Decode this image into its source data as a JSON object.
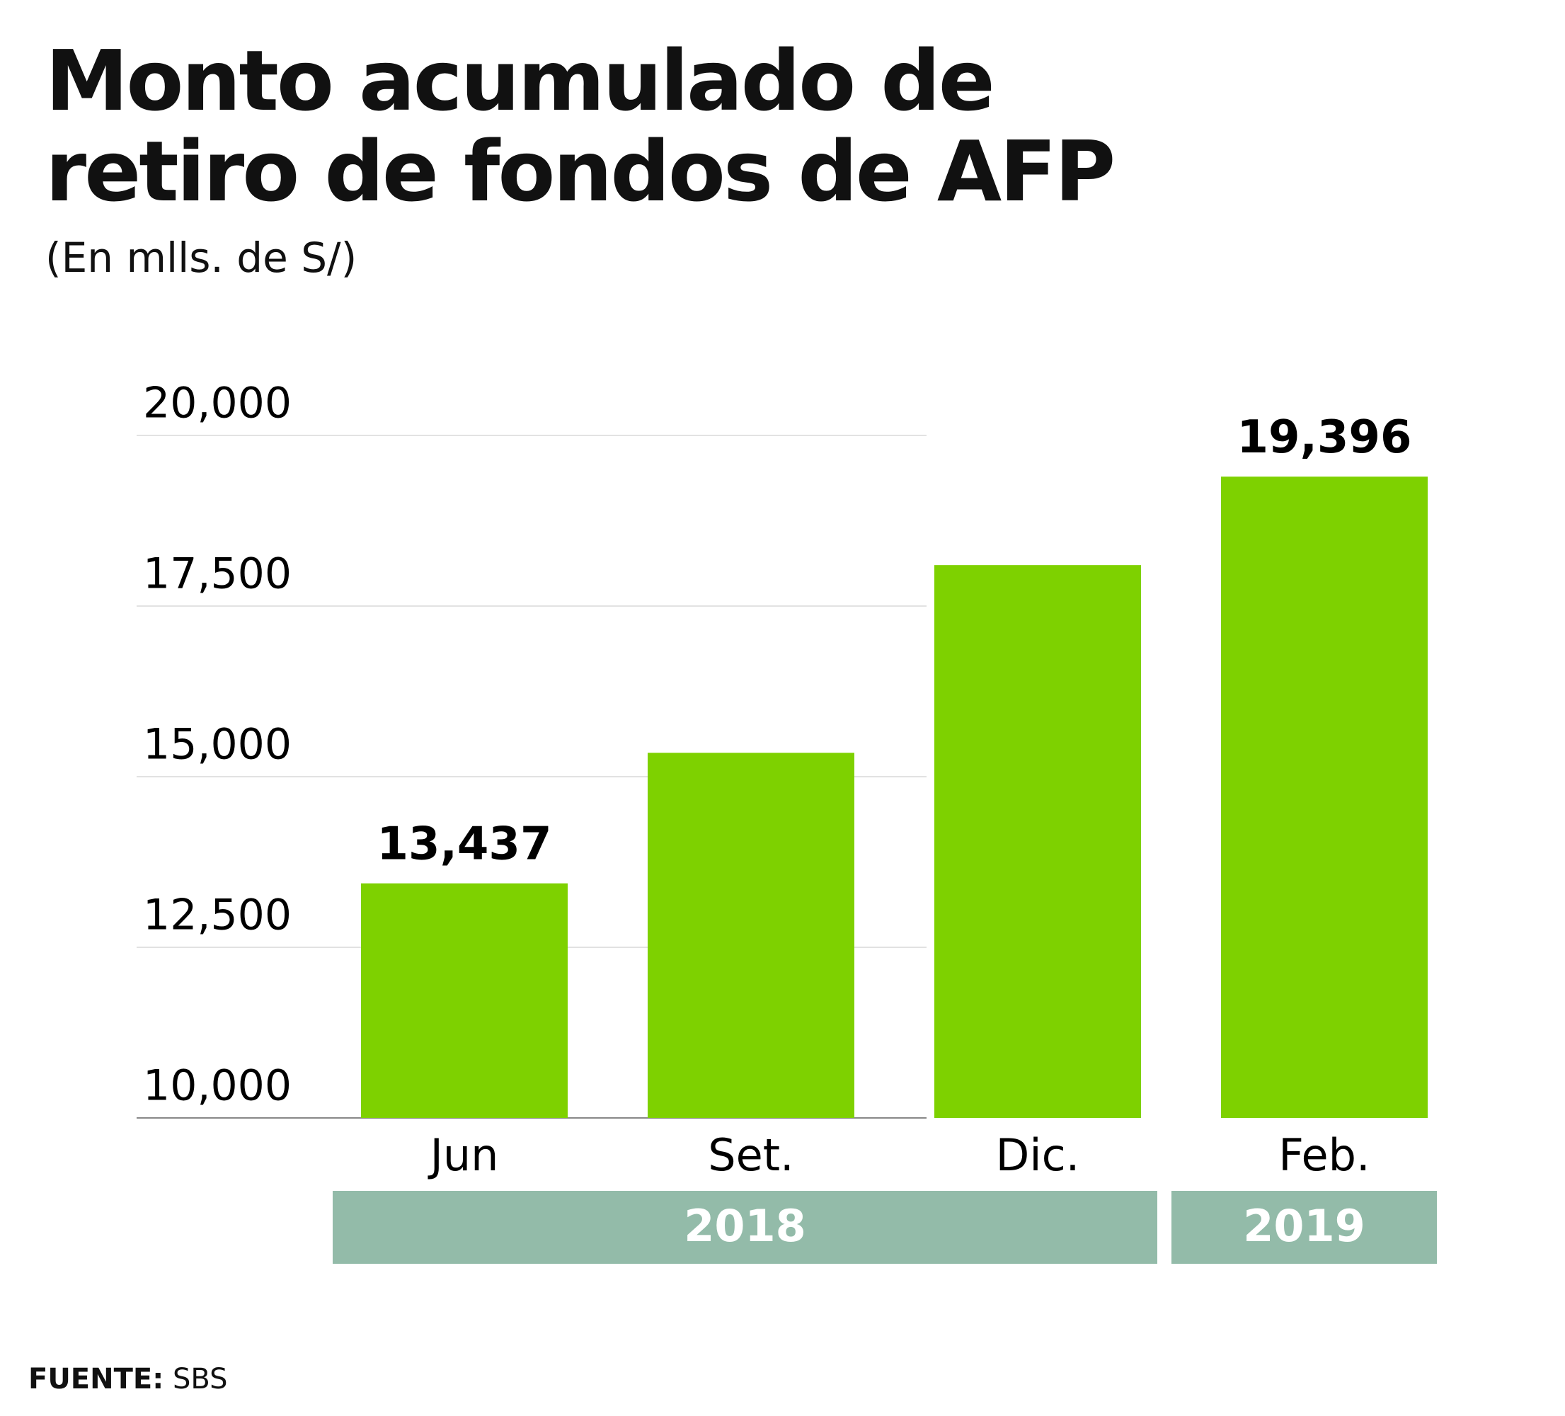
{
  "chart_data": {
    "type": "bar",
    "title": "Monto acumulado de retiro de fondos de AFP",
    "subtitle": "(En mlls. de S/)",
    "categories": [
      "Jun",
      "Set.",
      "Dic.",
      "Feb."
    ],
    "values": [
      13437,
      15350,
      18100,
      19396
    ],
    "value_labels": [
      "13,437",
      null,
      null,
      "19,396"
    ],
    "color": "#7ed100",
    "groups": [
      {
        "label": "2018",
        "span": 3
      },
      {
        "label": "2019",
        "span": 1
      }
    ],
    "group_color": "#93bba9",
    "ylim": [
      10000,
      20000
    ],
    "yticks": [
      {
        "value": 10000,
        "label": "10,000"
      },
      {
        "value": 12500,
        "label": "12,500"
      },
      {
        "value": 15000,
        "label": "15,000"
      },
      {
        "value": 17500,
        "label": "17,500"
      },
      {
        "value": 20000,
        "label": "20,000"
      }
    ],
    "grid": true,
    "source_label": "FUENTE:",
    "source": "SBS"
  }
}
